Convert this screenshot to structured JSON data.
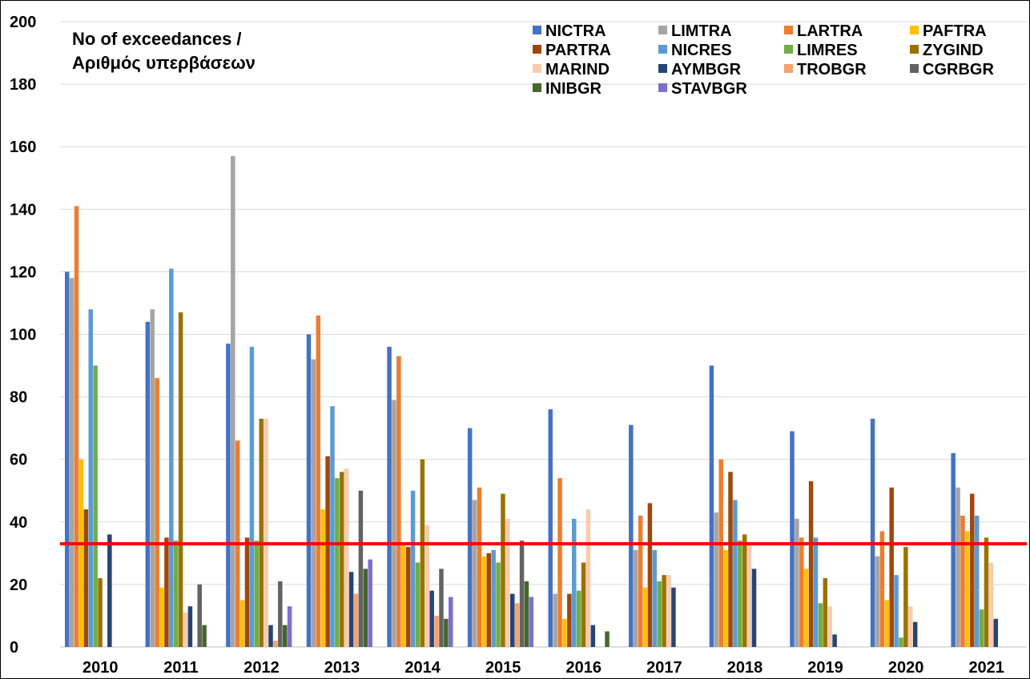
{
  "chart_data": {
    "type": "bar",
    "title_lines": [
      "No of exceedances /",
      "Αριθμός υπερβάσεων"
    ],
    "xlabel": "",
    "ylabel": "",
    "ylim": [
      0,
      200
    ],
    "ytick_step": 20,
    "grid": true,
    "legend_position": "top-right",
    "reference_line": {
      "value": 33,
      "color": "#ff0000"
    },
    "categories": [
      "2010",
      "2011",
      "2012",
      "2013",
      "2014",
      "2015",
      "2016",
      "2017",
      "2018",
      "2019",
      "2020",
      "2021"
    ],
    "series": [
      {
        "name": "NICTRA",
        "color": "#4472c4",
        "values": [
          120,
          104,
          97,
          100,
          96,
          70,
          76,
          71,
          90,
          69,
          73,
          62
        ]
      },
      {
        "name": "LIMTRA",
        "color": "#a5a5a5",
        "values": [
          118,
          108,
          157,
          92,
          79,
          47,
          17,
          31,
          43,
          41,
          29,
          51
        ]
      },
      {
        "name": "LARTRA",
        "color": "#ed7d31",
        "values": [
          141,
          86,
          66,
          106,
          93,
          51,
          54,
          42,
          60,
          35,
          37,
          42
        ]
      },
      {
        "name": "PAFTRA",
        "color": "#ffc000",
        "values": [
          60,
          19,
          15,
          44,
          33,
          29,
          9,
          19,
          31,
          25,
          15,
          37
        ]
      },
      {
        "name": "PARTRA",
        "color": "#9e480e",
        "values": [
          44,
          35,
          35,
          61,
          32,
          30,
          17,
          46,
          56,
          53,
          51,
          49
        ]
      },
      {
        "name": "NICRES",
        "color": "#5b9bd5",
        "values": [
          108,
          121,
          96,
          77,
          50,
          31,
          41,
          31,
          47,
          35,
          23,
          42
        ]
      },
      {
        "name": "LIMRES",
        "color": "#70ad47",
        "values": [
          90,
          34,
          34,
          54,
          27,
          27,
          18,
          21,
          34,
          14,
          3,
          12
        ]
      },
      {
        "name": "ZYGIND",
        "color": "#997300",
        "values": [
          22,
          107,
          73,
          56,
          60,
          49,
          27,
          23,
          36,
          22,
          32,
          35
        ]
      },
      {
        "name": "MARIND",
        "color": "#f8cbad",
        "values": [
          null,
          11,
          73,
          57,
          39,
          41,
          44,
          23,
          33,
          13,
          13,
          27
        ]
      },
      {
        "name": "AYMBGR",
        "color": "#264478",
        "values": [
          36,
          13,
          7,
          24,
          18,
          17,
          7,
          19,
          25,
          4,
          8,
          9
        ]
      },
      {
        "name": "TROBGR",
        "color": "#f4a36c",
        "values": [
          null,
          null,
          2,
          17,
          10,
          14,
          null,
          null,
          null,
          null,
          null,
          null
        ]
      },
      {
        "name": "CGRBGR",
        "color": "#636363",
        "values": [
          null,
          20,
          21,
          50,
          25,
          34,
          null,
          null,
          null,
          null,
          null,
          null
        ]
      },
      {
        "name": "INIBGR",
        "color": "#43682b",
        "values": [
          null,
          7,
          7,
          25,
          9,
          21,
          5,
          null,
          null,
          null,
          null,
          null
        ]
      },
      {
        "name": "STAVBGR",
        "color": "#7e6fcf",
        "values": [
          null,
          null,
          13,
          28,
          16,
          16,
          null,
          null,
          null,
          null,
          null,
          null
        ]
      }
    ]
  }
}
